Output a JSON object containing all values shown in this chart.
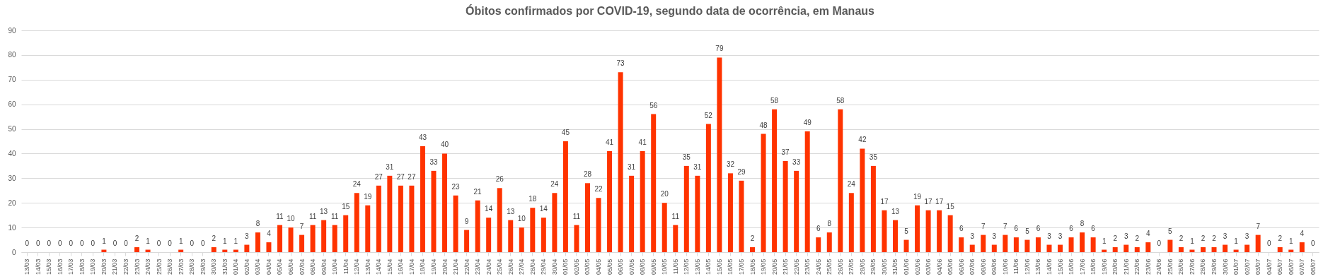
{
  "chart_data": {
    "type": "bar",
    "title": "Óbitos confirmados por COVID-19, segundo data de ocorrência, em Manaus",
    "categories": [
      "13/03",
      "14/03",
      "15/03",
      "16/03",
      "17/03",
      "18/03",
      "19/03",
      "20/03",
      "21/03",
      "22/03",
      "23/03",
      "24/03",
      "25/03",
      "26/03",
      "27/03",
      "28/03",
      "29/03",
      "30/03",
      "31/03",
      "01/04",
      "02/04",
      "03/04",
      "04/04",
      "05/04",
      "06/04",
      "07/04",
      "08/04",
      "09/04",
      "10/04",
      "11/04",
      "12/04",
      "13/04",
      "14/04",
      "15/04",
      "16/04",
      "17/04",
      "18/04",
      "19/04",
      "20/04",
      "21/04",
      "22/04",
      "23/04",
      "24/04",
      "25/04",
      "26/04",
      "27/04",
      "28/04",
      "29/04",
      "30/04",
      "01/05",
      "02/05",
      "03/05",
      "04/05",
      "05/05",
      "06/05",
      "07/05",
      "08/05",
      "09/05",
      "10/05",
      "11/05",
      "12/05",
      "13/05",
      "14/05",
      "15/05",
      "16/05",
      "17/05",
      "18/05",
      "19/05",
      "20/05",
      "21/05",
      "22/05",
      "23/05",
      "24/05",
      "25/05",
      "26/05",
      "27/05",
      "28/05",
      "29/05",
      "30/05",
      "31/05",
      "01/06",
      "02/06",
      "03/06",
      "04/06",
      "05/06",
      "06/06",
      "07/06",
      "08/06",
      "09/06",
      "10/06",
      "11/06",
      "12/06",
      "13/06",
      "14/06",
      "15/06",
      "16/06",
      "17/06",
      "18/06",
      "19/06",
      "20/06",
      "21/06",
      "22/06",
      "23/06",
      "24/06",
      "25/06",
      "26/06",
      "27/06",
      "28/06",
      "29/06",
      "30/06",
      "01/07",
      "02/07",
      "03/07",
      "04/07",
      "05/07",
      "06/07",
      "07/07",
      "08/07"
    ],
    "values": [
      0,
      0,
      0,
      0,
      0,
      0,
      0,
      1,
      0,
      0,
      2,
      1,
      0,
      0,
      1,
      0,
      0,
      2,
      1,
      1,
      3,
      8,
      4,
      11,
      10,
      7,
      11,
      13,
      11,
      15,
      24,
      19,
      27,
      31,
      27,
      27,
      43,
      33,
      40,
      23,
      9,
      21,
      14,
      26,
      13,
      10,
      18,
      14,
      24,
      45,
      11,
      28,
      22,
      41,
      73,
      31,
      41,
      56,
      20,
      11,
      35,
      31,
      52,
      79,
      32,
      29,
      2,
      48,
      58,
      37,
      33,
      49,
      6,
      8,
      58,
      24,
      42,
      35,
      17,
      13,
      5,
      19,
      17,
      17,
      15,
      6,
      3,
      7,
      3,
      7,
      6,
      5,
      6,
      3,
      3,
      6,
      8,
      6,
      1,
      2,
      3,
      2,
      4,
      0,
      5,
      2,
      1,
      2,
      2,
      3,
      1,
      3,
      7,
      0,
      2,
      1,
      4,
      0
    ],
    "color": "#ff3300",
    "ylim": [
      0,
      90
    ],
    "yticks": [
      0,
      10,
      20,
      30,
      40,
      50,
      60,
      70,
      80,
      90
    ],
    "grid": "y",
    "data_labels": true
  }
}
